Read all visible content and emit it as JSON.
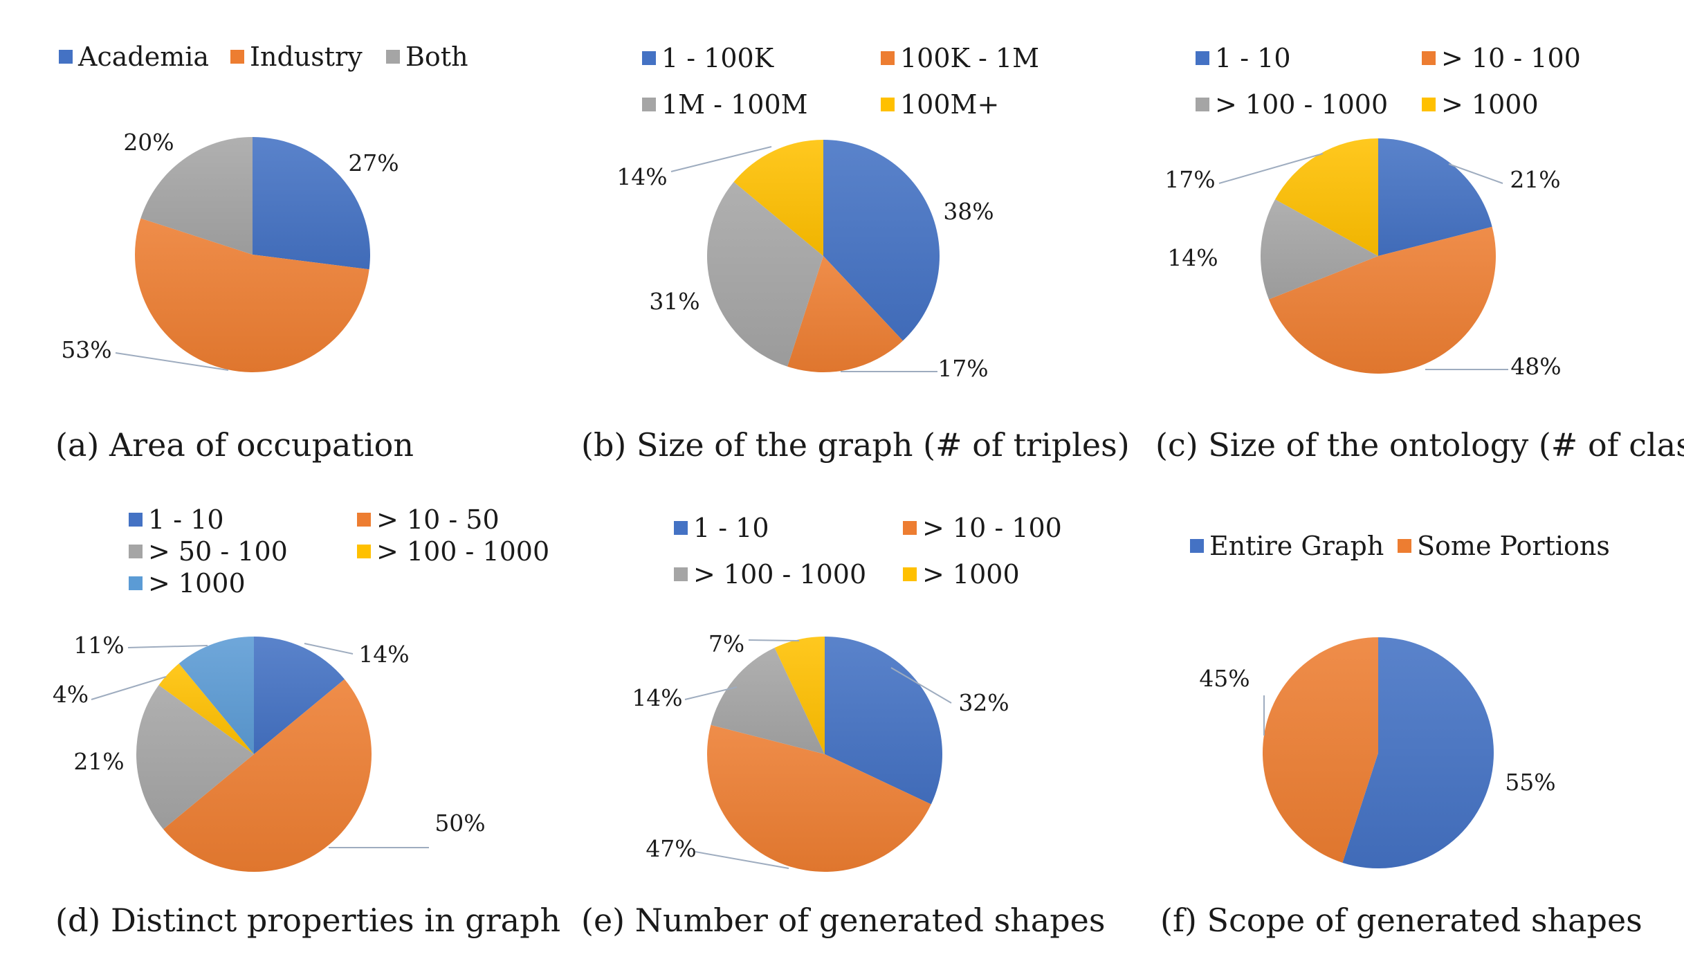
{
  "colors": {
    "blue": "#4472C4",
    "orange": "#ED7D31",
    "gray": "#A5A5A5",
    "yellow": "#FFC000",
    "lightblue": "#5B9BD5"
  },
  "chart_data": [
    {
      "type": "pie",
      "caption": "(a) Area of occupation",
      "title": "",
      "categories": [
        "Academia",
        "Industry",
        "Both"
      ],
      "values": [
        27,
        53,
        20
      ],
      "labels": [
        "27%",
        "53%",
        "20%"
      ],
      "colors": [
        "#4472C4",
        "#ED7D31",
        "#A5A5A5"
      ],
      "legend_position": "top"
    },
    {
      "type": "pie",
      "caption": "(b) Size of the graph (# of triples)",
      "title": "",
      "categories": [
        "1 - 100K",
        "100K - 1M",
        "1M - 100M",
        "100M+"
      ],
      "values": [
        38,
        17,
        31,
        14
      ],
      "labels": [
        "38%",
        "17%",
        "31%",
        "14%"
      ],
      "colors": [
        "#4472C4",
        "#ED7D31",
        "#A5A5A5",
        "#FFC000"
      ],
      "legend_position": "top"
    },
    {
      "type": "pie",
      "caption": "(c) Size of the ontology (# of classes)",
      "title": "",
      "categories": [
        "1 - 10",
        "> 10 - 100",
        "> 100 - 1000",
        "> 1000"
      ],
      "values": [
        21,
        48,
        14,
        17
      ],
      "labels": [
        "21%",
        "48%",
        "14%",
        "17%"
      ],
      "colors": [
        "#4472C4",
        "#ED7D31",
        "#A5A5A5",
        "#FFC000"
      ],
      "legend_position": "top"
    },
    {
      "type": "pie",
      "caption": "(d) Distinct properties in graph",
      "title": "",
      "categories": [
        "1 - 10",
        "> 10 - 50",
        "> 50 - 100",
        "> 100 - 1000",
        "> 1000"
      ],
      "values": [
        14,
        50,
        21,
        4,
        11
      ],
      "labels": [
        "14%",
        "50%",
        "21%",
        "4%",
        "11%"
      ],
      "colors": [
        "#4472C4",
        "#ED7D31",
        "#A5A5A5",
        "#FFC000",
        "#5B9BD5"
      ],
      "legend_position": "top"
    },
    {
      "type": "pie",
      "caption": "(e) Number of generated shapes",
      "title": "",
      "categories": [
        "1 - 10",
        "> 10 - 100",
        "> 100 - 1000",
        "> 1000"
      ],
      "values": [
        32,
        47,
        14,
        7
      ],
      "labels": [
        "32%",
        "47%",
        "14%",
        "7%"
      ],
      "colors": [
        "#4472C4",
        "#ED7D31",
        "#A5A5A5",
        "#FFC000"
      ],
      "legend_position": "top"
    },
    {
      "type": "pie",
      "caption": "(f) Scope of generated shapes",
      "title": "",
      "categories": [
        "Entire Graph",
        "Some Portions"
      ],
      "values": [
        55,
        45
      ],
      "labels": [
        "55%",
        "45%"
      ],
      "colors": [
        "#4472C4",
        "#ED7D31"
      ],
      "legend_position": "top"
    }
  ]
}
